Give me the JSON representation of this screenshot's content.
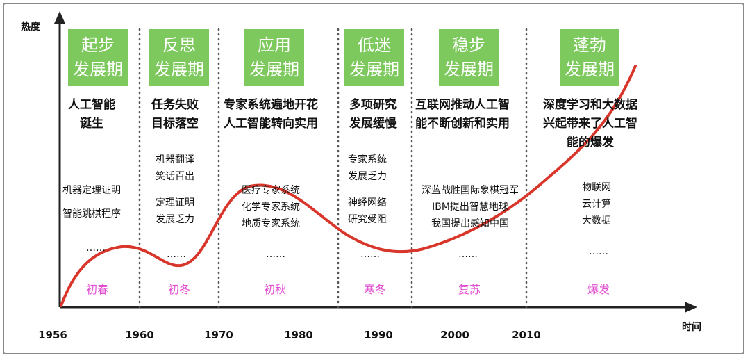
{
  "y_axis_label": "热度",
  "x_axis_label": "时间",
  "ticks": [
    "1956",
    "1960",
    "1970",
    "1980",
    "1990",
    "2000",
    "2010"
  ],
  "phases": [
    {
      "title_line1": "起步",
      "title_line2": "发展期",
      "event_line1": "人工智能",
      "event_line2": "诞生",
      "details": [
        "机器定理证明",
        "智能跳棋程序"
      ],
      "ellipsis": "……",
      "season": "初春"
    },
    {
      "title_line1": "反思",
      "title_line2": "发展期",
      "event_line1": "任务失败",
      "event_line2": "目标落空",
      "details": [
        "机器翻译",
        "笑话百出",
        "定理证明",
        "发展乏力"
      ],
      "ellipsis": "……",
      "season": "初冬"
    },
    {
      "title_line1": "应用",
      "title_line2": "发展期",
      "event_line1": "专家系统遍地开花",
      "event_line2": "人工智能转向实用",
      "details": [
        "医疗专家系统",
        "化学专家系统",
        "地质专家系统"
      ],
      "ellipsis": "……",
      "season": "初秋"
    },
    {
      "title_line1": "低迷",
      "title_line2": "发展期",
      "event_line1": "多项研究",
      "event_line2": "发展缓慢",
      "details": [
        "专家系统",
        "发展乏力",
        "神经网络",
        "研究受阻"
      ],
      "ellipsis": "……",
      "season": "寒冬"
    },
    {
      "title_line1": "稳步",
      "title_line2": "发展期",
      "event_line1": "互联网推动人工智",
      "event_line2": "能不断创新和实用",
      "details": [
        "深蓝战胜国际象棋冠军",
        "IBM提出智慧地球",
        "我国提出感知中国"
      ],
      "ellipsis": "……",
      "season": "复苏"
    },
    {
      "title_line1": "蓬勃",
      "title_line2": "发展期",
      "event_line1": "深度学习和大数据",
      "event_line2": "兴起带来了人工智",
      "event_line3": "能的爆发",
      "details": [
        "物联网",
        "云计算",
        "大数据"
      ],
      "ellipsis": "……",
      "season": "爆发"
    }
  ],
  "colors": {
    "phase_box": "#7dc95e",
    "curve": "#d9362b",
    "season_text": "#e14fd1"
  }
}
